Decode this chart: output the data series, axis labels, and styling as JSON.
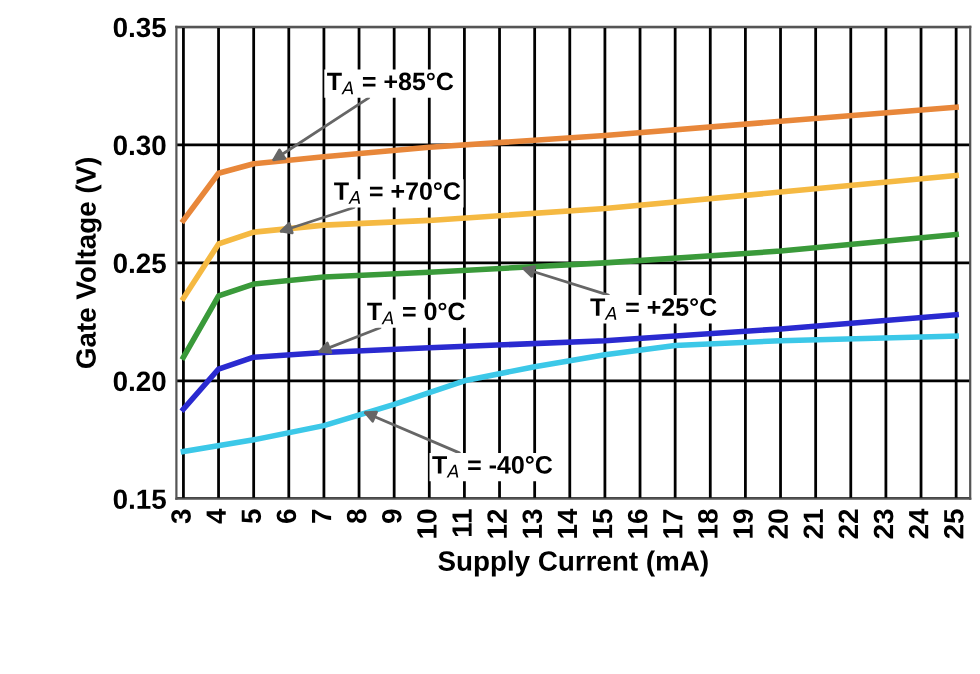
{
  "chart_data": {
    "type": "line",
    "xlabel": "Supply Current (mA)",
    "ylabel": "Gate Voltage (V)",
    "xlim": [
      2.8,
      25.4
    ],
    "xticks": [
      3,
      4,
      5,
      6,
      7,
      8,
      9,
      10,
      11,
      12,
      13,
      14,
      15,
      16,
      17,
      18,
      19,
      20,
      21,
      22,
      23,
      24,
      25
    ],
    "ylim": [
      0.15,
      0.35
    ],
    "yticks": [
      {
        "value": 0.15,
        "label": "0.15"
      },
      {
        "value": 0.2,
        "label": "0.20"
      },
      {
        "value": 0.25,
        "label": "0.25"
      },
      {
        "value": 0.3,
        "label": "0.30"
      },
      {
        "value": 0.35,
        "label": "0.35"
      }
    ],
    "grid": true,
    "marker": "none",
    "line_style": "solid",
    "series": [
      {
        "color": "#e8873a",
        "x": [
          3,
          4,
          5,
          7,
          10,
          15,
          20,
          25
        ],
        "values": [
          0.268,
          0.288,
          0.292,
          0.295,
          0.299,
          0.304,
          0.31,
          0.316
        ]
      },
      {
        "color": "#f5b942",
        "x": [
          3,
          4,
          5,
          7,
          10,
          15,
          20,
          25
        ],
        "values": [
          0.235,
          0.258,
          0.263,
          0.266,
          0.268,
          0.273,
          0.28,
          0.287
        ]
      },
      {
        "color": "#3a9a3a",
        "x": [
          3,
          4,
          5,
          7,
          10,
          15,
          20,
          25
        ],
        "values": [
          0.21,
          0.236,
          0.241,
          0.244,
          0.246,
          0.25,
          0.255,
          0.262
        ]
      },
      {
        "color": "#2a2ad0",
        "x": [
          3,
          4,
          5,
          7,
          10,
          15,
          20,
          25
        ],
        "values": [
          0.188,
          0.205,
          0.21,
          0.212,
          0.214,
          0.217,
          0.222,
          0.228
        ]
      },
      {
        "color": "#3cc8e8",
        "x": [
          3,
          5,
          7,
          9,
          11,
          13,
          15,
          17,
          20,
          25
        ],
        "values": [
          0.17,
          0.175,
          0.181,
          0.19,
          0.2,
          0.206,
          0.211,
          0.215,
          0.217,
          0.219
        ]
      }
    ],
    "annotations": [
      {
        "text": "T$_{A}$ = +85°C",
        "x": 5.5,
        "y": 0.293
      },
      {
        "text": "T$_{A}$ = +70°C",
        "x": 5.7,
        "y": 0.263
      },
      {
        "text": "T$_{A}$ = +25°C",
        "x": 12.6,
        "y": 0.248
      },
      {
        "text": "T$_{A}$ = 0°C",
        "x": 6.8,
        "y": 0.212
      },
      {
        "text": "T$_{A}$ = -40°C",
        "x": 8.1,
        "y": 0.187
      }
    ]
  }
}
